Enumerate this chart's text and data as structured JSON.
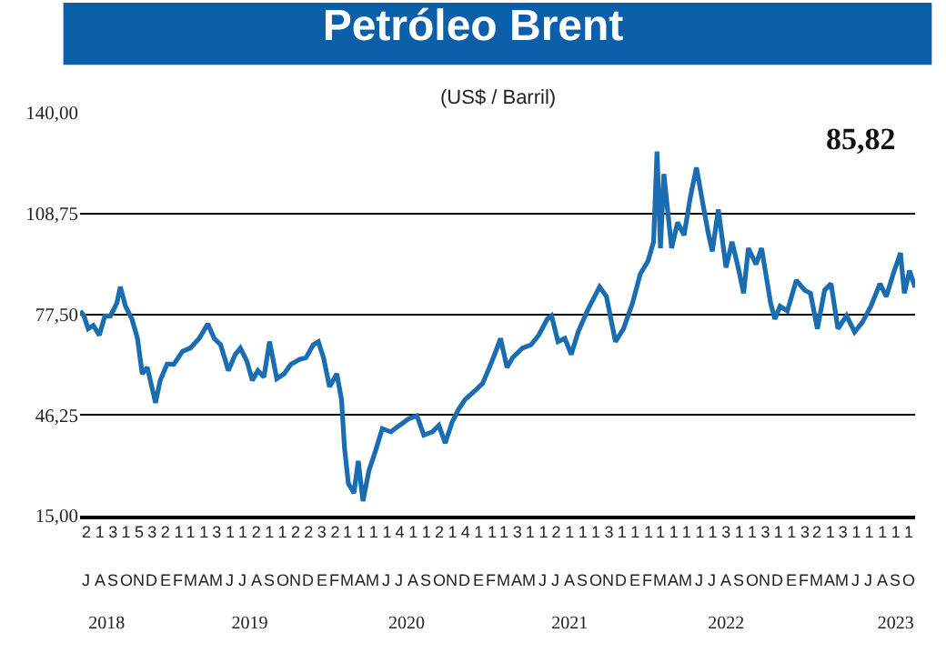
{
  "chart_data": {
    "type": "line",
    "title": "Petróleo Brent",
    "subtitle": "(US$ / Barril)",
    "annotations": [
      "85,82",
      "J",
      "A",
      "S",
      "O",
      "N",
      "D",
      "E",
      "F",
      "M",
      "A",
      "M",
      "J",
      "J",
      "A",
      "S",
      "O",
      "N",
      "D",
      "E",
      "F",
      "M",
      "A",
      "M",
      "J",
      "J",
      "A",
      "S",
      "O",
      "N",
      "D",
      "E",
      "F",
      "M",
      "A",
      "M",
      "J",
      "J",
      "A",
      "S",
      "O",
      "N",
      "D",
      "E",
      "F",
      "M",
      "A",
      "M",
      "J",
      "J",
      "A",
      "S",
      "O",
      "N",
      "D",
      "E",
      "F",
      "M",
      "A",
      "M",
      "J",
      "J",
      "A",
      "S",
      "O"
    ],
    "x": [
      "2018-07-02",
      "2018-07-10",
      "2018-07-20",
      "2018-08-01",
      "2018-08-15",
      "2018-08-28",
      "2018-09-10",
      "2018-09-25",
      "2018-10-03",
      "2018-10-15",
      "2018-10-30",
      "2018-11-12",
      "2018-11-23",
      "2018-12-05",
      "2018-12-24",
      "2019-01-04",
      "2019-01-20",
      "2019-02-05",
      "2019-02-25",
      "2019-03-15",
      "2019-04-05",
      "2019-04-25",
      "2019-05-10",
      "2019-05-25",
      "2019-06-12",
      "2019-06-28",
      "2019-07-10",
      "2019-07-25",
      "2019-08-07",
      "2019-08-20",
      "2019-09-03",
      "2019-09-16",
      "2019-09-25",
      "2019-10-03",
      "2019-10-20",
      "2019-11-05",
      "2019-11-25",
      "2019-12-10",
      "2019-12-27",
      "2020-01-08",
      "2020-01-20",
      "2020-02-03",
      "2020-02-20",
      "2020-03-02",
      "2020-03-09",
      "2020-03-18",
      "2020-03-31",
      "2020-04-10",
      "2020-04-21",
      "2020-05-05",
      "2020-05-20",
      "2020-06-05",
      "2020-06-25",
      "2020-07-15",
      "2020-08-05",
      "2020-08-25",
      "2020-09-10",
      "2020-09-30",
      "2020-10-15",
      "2020-10-30",
      "2020-11-15",
      "2020-11-30",
      "2020-12-15",
      "2021-01-05",
      "2021-01-25",
      "2021-02-10",
      "2021-02-25",
      "2021-03-08",
      "2021-03-23",
      "2021-04-05",
      "2021-04-28",
      "2021-05-18",
      "2021-06-05",
      "2021-06-25",
      "2021-07-05",
      "2021-07-20",
      "2021-08-05",
      "2021-08-20",
      "2021-09-05",
      "2021-09-28",
      "2021-10-25",
      "2021-11-10",
      "2021-12-01",
      "2021-12-20",
      "2022-01-10",
      "2022-01-28",
      "2022-02-15",
      "2022-02-28",
      "2022-03-08",
      "2022-03-16",
      "2022-03-24",
      "2022-04-11",
      "2022-04-25",
      "2022-05-10",
      "2022-05-25",
      "2022-06-08",
      "2022-06-20",
      "2022-07-05",
      "2022-07-15",
      "2022-07-29",
      "2022-08-16",
      "2022-08-30",
      "2022-09-15",
      "2022-09-26",
      "2022-10-07",
      "2022-10-25",
      "2022-11-07",
      "2022-11-28",
      "2022-12-08",
      "2022-12-20",
      "2023-01-06",
      "2023-01-27",
      "2023-02-15",
      "2023-03-01",
      "2023-03-17",
      "2023-04-03",
      "2023-04-18",
      "2023-05-04",
      "2023-05-24",
      "2023-06-12",
      "2023-06-30",
      "2023-07-20",
      "2023-08-10",
      "2023-08-25",
      "2023-09-10",
      "2023-09-27",
      "2023-10-06",
      "2023-10-18",
      "2023-10-31"
    ],
    "series": [
      {
        "color": "#1a6db0",
        "values": [
          78.5,
          77,
          73,
          74,
          71,
          77,
          77,
          81,
          86,
          80,
          76,
          70,
          59,
          61,
          50,
          57,
          62,
          62,
          66,
          67,
          70,
          74.5,
          70,
          68,
          60,
          65,
          67,
          63,
          57,
          60,
          58,
          69,
          63,
          57.5,
          59,
          62,
          63.5,
          64,
          68,
          69,
          64,
          55,
          59,
          51,
          36,
          25,
          22,
          32,
          19.5,
          29,
          35,
          42,
          41,
          43,
          45,
          46,
          40,
          41,
          43,
          37.5,
          44,
          48,
          51,
          53.5,
          56,
          61,
          66,
          70,
          61,
          64,
          67,
          68,
          71,
          76,
          77,
          69,
          70,
          65,
          72,
          79,
          86,
          83,
          69,
          73,
          81,
          90,
          94,
          100,
          128,
          98,
          121,
          98,
          106,
          102,
          114,
          123,
          114,
          103,
          97,
          110,
          92,
          100,
          91,
          84,
          98,
          93,
          98,
          81,
          76,
          80,
          78.5,
          88,
          85,
          84,
          73,
          85,
          87,
          73,
          77,
          72,
          75,
          80,
          87,
          83,
          90,
          96.5,
          84,
          91,
          85.82
        ]
      }
    ],
    "ylim": [
      15,
      140
    ],
    "yticks": [
      {
        "value": 15,
        "label": "15,00"
      },
      {
        "value": 46.25,
        "label": "46,25"
      },
      {
        "value": 77.5,
        "label": "77,50"
      },
      {
        "value": 108.75,
        "label": "108,75"
      },
      {
        "value": 140,
        "label": "140,00"
      }
    ],
    "xlim": [
      "2018-07-01",
      "2023-10-31"
    ],
    "xticks": [
      {
        "value": "2018-09-01",
        "label": "2018"
      },
      {
        "value": "2019-08-01",
        "label": "2019"
      },
      {
        "value": "2020-08-01",
        "label": "2020"
      },
      {
        "value": "2021-08-16",
        "label": "2021"
      },
      {
        "value": "2022-08-16",
        "label": "2022"
      },
      {
        "value": "2023-09-16",
        "label": "2023"
      }
    ],
    "x2lim": [
      "2018-07-01",
      "2023-10-31"
    ],
    "x2ticks": [
      {
        "value": "2018-07-16",
        "label": "2"
      },
      {
        "value": "2018-08-16",
        "label": "1"
      },
      {
        "value": "2018-09-16",
        "label": "3"
      },
      {
        "value": "2018-10-16",
        "label": "1"
      },
      {
        "value": "2018-11-16",
        "label": "5"
      },
      {
        "value": "2018-12-16",
        "label": "3"
      },
      {
        "value": "2019-01-16",
        "label": "2"
      },
      {
        "value": "2019-02-16",
        "label": "1"
      },
      {
        "value": "2019-03-16",
        "label": "1"
      },
      {
        "value": "2019-04-16",
        "label": "1"
      },
      {
        "value": "2019-05-16",
        "label": "3"
      },
      {
        "value": "2019-06-16",
        "label": "1"
      },
      {
        "value": "2019-07-16",
        "label": "1"
      },
      {
        "value": "2019-08-16",
        "label": "2"
      },
      {
        "value": "2019-09-16",
        "label": "1"
      },
      {
        "value": "2019-10-16",
        "label": "1"
      },
      {
        "value": "2019-11-16",
        "label": "2"
      },
      {
        "value": "2019-12-16",
        "label": "2"
      },
      {
        "value": "2020-01-16",
        "label": "3"
      },
      {
        "value": "2020-02-16",
        "label": "2"
      },
      {
        "value": "2020-03-16",
        "label": "1"
      },
      {
        "value": "2020-04-16",
        "label": "1"
      },
      {
        "value": "2020-05-16",
        "label": "1"
      },
      {
        "value": "2020-06-16",
        "label": "1"
      },
      {
        "value": "2020-07-16",
        "label": "4"
      },
      {
        "value": "2020-08-16",
        "label": "1"
      },
      {
        "value": "2020-09-16",
        "label": "1"
      },
      {
        "value": "2020-10-16",
        "label": "2"
      },
      {
        "value": "2020-11-16",
        "label": "1"
      },
      {
        "value": "2020-12-16",
        "label": "4"
      },
      {
        "value": "2021-01-16",
        "label": "1"
      },
      {
        "value": "2021-02-16",
        "label": "1"
      },
      {
        "value": "2021-03-16",
        "label": "1"
      },
      {
        "value": "2021-04-16",
        "label": "3"
      },
      {
        "value": "2021-05-16",
        "label": "1"
      },
      {
        "value": "2021-06-16",
        "label": "1"
      },
      {
        "value": "2021-07-16",
        "label": "2"
      },
      {
        "value": "2021-08-16",
        "label": "1"
      },
      {
        "value": "2021-09-16",
        "label": "1"
      },
      {
        "value": "2021-10-16",
        "label": "1"
      },
      {
        "value": "2021-11-16",
        "label": "3"
      },
      {
        "value": "2021-12-16",
        "label": "1"
      },
      {
        "value": "2022-01-16",
        "label": "1"
      },
      {
        "value": "2022-02-16",
        "label": "1"
      },
      {
        "value": "2022-03-16",
        "label": "1"
      },
      {
        "value": "2022-04-16",
        "label": "1"
      },
      {
        "value": "2022-05-16",
        "label": "1"
      },
      {
        "value": "2022-06-16",
        "label": "1"
      },
      {
        "value": "2022-07-16",
        "label": "1"
      },
      {
        "value": "2022-08-16",
        "label": "3"
      },
      {
        "value": "2022-09-16",
        "label": "1"
      },
      {
        "value": "2022-10-16",
        "label": "1"
      },
      {
        "value": "2022-11-16",
        "label": "3"
      },
      {
        "value": "2022-12-16",
        "label": "1"
      },
      {
        "value": "2023-01-16",
        "label": "1"
      },
      {
        "value": "2023-02-16",
        "label": "3"
      },
      {
        "value": "2023-03-16",
        "label": "2"
      },
      {
        "value": "2023-04-16",
        "label": "1"
      },
      {
        "value": "2023-05-16",
        "label": "3"
      },
      {
        "value": "2023-06-16",
        "label": "1"
      },
      {
        "value": "2023-07-16",
        "label": "1"
      },
      {
        "value": "2023-08-16",
        "label": "1"
      },
      {
        "value": "2023-09-16",
        "label": "1"
      },
      {
        "value": "2023-10-16",
        "label": "1"
      }
    ],
    "grid": "y",
    "marker": "none",
    "line_style": "solid"
  }
}
